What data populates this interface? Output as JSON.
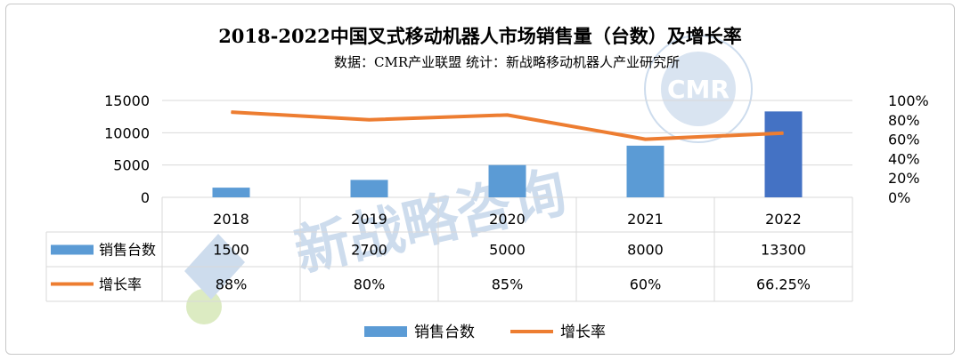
{
  "chart_data": {
    "type": "bar",
    "title": "2018-2022中国叉式移动机器人市场销售量（台数）及增长率",
    "subtitle": "数据：CMR产业联盟    统计：新战略移动机器人产业研究所",
    "categories": [
      "2018",
      "2019",
      "2020",
      "2021",
      "2022"
    ],
    "series": [
      {
        "name": "销售台数",
        "kind": "bar",
        "axis": "left",
        "values": [
          1500,
          2700,
          5000,
          8000,
          13300
        ],
        "labels": [
          "1500",
          "2700",
          "5000",
          "8000",
          "13300"
        ]
      },
      {
        "name": "增长率",
        "kind": "line",
        "axis": "right",
        "values": [
          0.88,
          0.8,
          0.85,
          0.6,
          0.6625
        ],
        "labels": [
          "88%",
          "80%",
          "85%",
          "60%",
          "66.25%"
        ]
      }
    ],
    "y_left": {
      "min": 0,
      "max": 15000,
      "ticks": [
        "0",
        "5000",
        "10000",
        "15000"
      ]
    },
    "y_right": {
      "min": 0,
      "max": 1.0,
      "ticks": [
        "0%",
        "20%",
        "40%",
        "60%",
        "80%",
        "100%"
      ]
    },
    "legend": {
      "position": "bottom",
      "items": [
        "销售台数",
        "增长率"
      ]
    },
    "data_table": true
  },
  "watermark": {
    "text": "新战略咨询",
    "logo_text": "CMR",
    "seal_text": "移动机器人产业联盟 ADVANCE"
  },
  "colors": {
    "bar": "#5b9bd5",
    "bar_highlight": "#4472c4",
    "line": "#ed7d31",
    "grid": "#d9d9d9",
    "text": "#000000",
    "watermark": "#c5d6ea",
    "watermark_green": "#d6e8b8"
  }
}
